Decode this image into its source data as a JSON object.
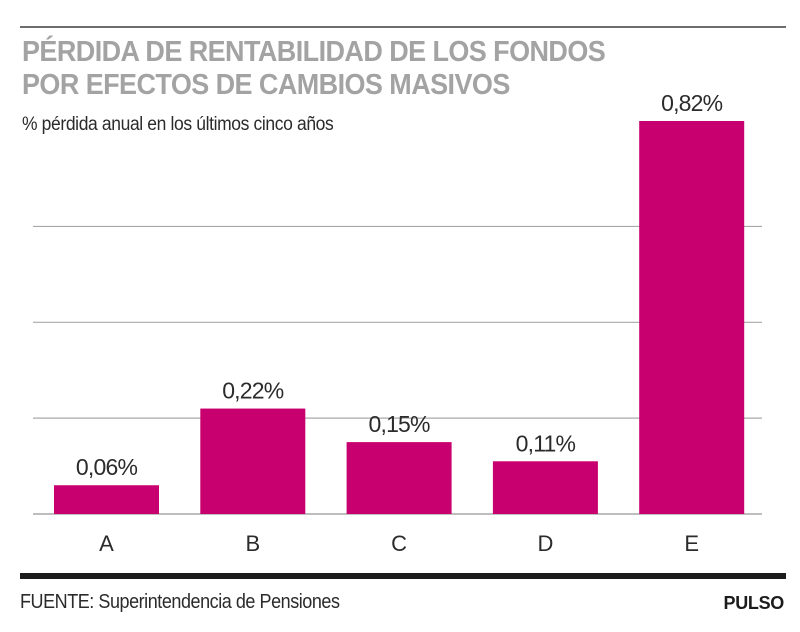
{
  "header": {
    "title_line1": "PÉRDIDA DE RENTABILIDAD DE LOS FONDOS",
    "title_line2": "POR EFECTOS DE CAMBIOS MASIVOS",
    "subtitle": "% pérdida anual en los últimos cinco años"
  },
  "footer": {
    "source": "FUENTE: Superintendencia de Pensiones",
    "brand": "PULSO"
  },
  "colors": {
    "bar": "#c8006f",
    "grid": "#a8a8a8",
    "title": "#a3a3a3",
    "text": "#2b2b2b"
  },
  "chart_data": {
    "type": "bar",
    "title": "PÉRDIDA DE RENTABILIDAD DE LOS FONDOS POR EFECTOS DE CAMBIOS MASIVOS",
    "subtitle": "% pérdida anual en los últimos cinco años",
    "categories": [
      "A",
      "B",
      "C",
      "D",
      "E"
    ],
    "values": [
      0.06,
      0.22,
      0.15,
      0.11,
      0.82
    ],
    "data_labels": [
      "0,06%",
      "0,22%",
      "0,15%",
      "0,11%",
      "0,82%"
    ],
    "xlabel": "",
    "ylabel": "",
    "ylim": [
      0,
      0.82
    ],
    "gridlines": [
      0,
      0.2,
      0.4,
      0.6
    ],
    "grid": true,
    "legend": "none",
    "unit": "%"
  }
}
